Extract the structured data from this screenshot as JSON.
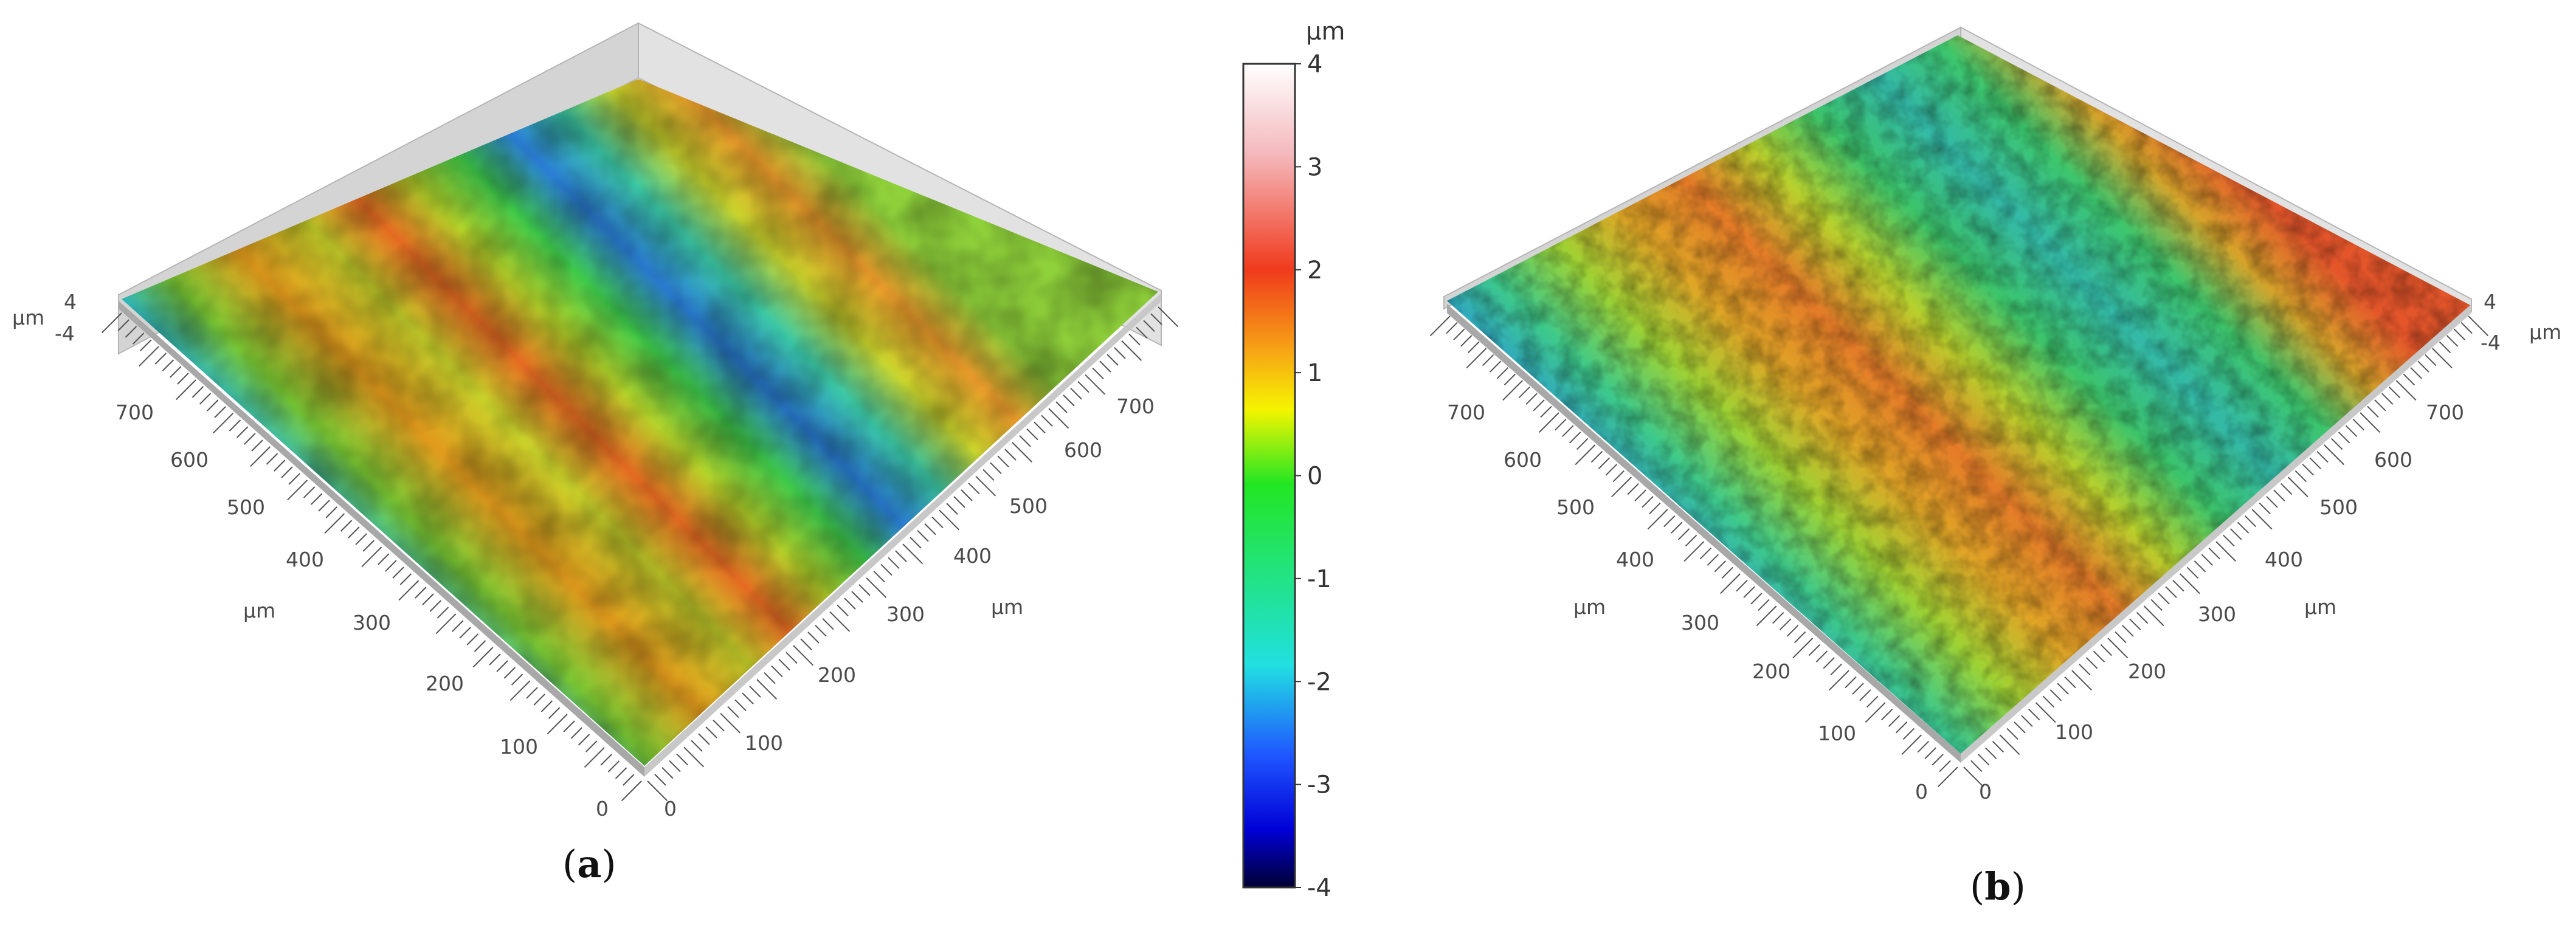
{
  "panels": [
    {
      "label_open": "(",
      "label_letter": "a",
      "label_close": ")",
      "z_ticks": [
        "4",
        "-4"
      ],
      "z_unit": "µm",
      "axis_left_ticks": [
        "700",
        "600",
        "500",
        "400",
        "300",
        "200",
        "100",
        "0"
      ],
      "axis_right_ticks": [
        "0",
        "100",
        "200",
        "300",
        "400",
        "500",
        "600",
        "700"
      ],
      "axis_left_unit": "µm",
      "axis_right_unit": "µm"
    },
    {
      "label_open": "(",
      "label_letter": "b",
      "label_close": ")",
      "z_ticks": [
        "4",
        "-4"
      ],
      "z_unit": "µm",
      "axis_left_ticks": [
        "700",
        "600",
        "500",
        "400",
        "300",
        "200",
        "100",
        "0"
      ],
      "axis_right_ticks": [
        "0",
        "100",
        "200",
        "300",
        "400",
        "500",
        "600",
        "700"
      ],
      "axis_left_unit": "µm",
      "axis_right_unit": "µm"
    }
  ],
  "colorbar": {
    "unit": "µm",
    "ticks": [
      "4",
      "3",
      "2",
      "1",
      "0",
      "-1",
      "-2",
      "-3",
      "-4"
    ],
    "colors": [
      "#ffffff",
      "#f4b8bc",
      "#f03a1c",
      "#f7a615",
      "#f5f500",
      "#22e622",
      "#21e0e0",
      "#1f56ff",
      "#0000d6",
      "#000033"
    ]
  }
}
